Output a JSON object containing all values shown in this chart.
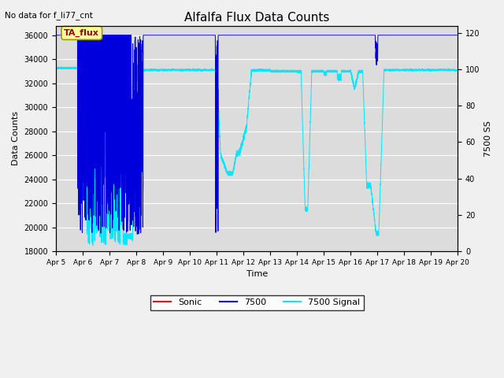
{
  "title": "Alfalfa Flux Data Counts",
  "top_left_text": "No data for f_li77_cnt",
  "xlabel": "Time",
  "ylabel_left": "Data Counts",
  "ylabel_right": "7500 SS",
  "ylim_left": [
    18000,
    36800
  ],
  "ylim_right": [
    0,
    124
  ],
  "yticks_left": [
    18000,
    20000,
    22000,
    24000,
    26000,
    28000,
    30000,
    32000,
    34000,
    36000
  ],
  "yticks_right": [
    0,
    20,
    40,
    60,
    80,
    100,
    120
  ],
  "xtick_labels": [
    "Apr 5",
    "Apr 6",
    "Apr 7",
    "Apr 8",
    "Apr 9",
    "Apr 10",
    "Apr 11",
    "Apr 12",
    "Apr 13",
    "Apr 14",
    "Apr 15",
    "Apr 16",
    "Apr 17",
    "Apr 18",
    "Apr 19",
    "Apr 20"
  ],
  "fig_bg": "#f0f0f0",
  "plot_bg": "#dcdcdc",
  "grid_color": "#ffffff",
  "blue_color": "#0000dd",
  "cyan_color": "#00e8ff",
  "red_color": "#ff0000",
  "annotation_text": "TA_flux",
  "annotation_facecolor": "#ffffa0",
  "annotation_edgecolor": "#999900",
  "annotation_textcolor": "#990000"
}
